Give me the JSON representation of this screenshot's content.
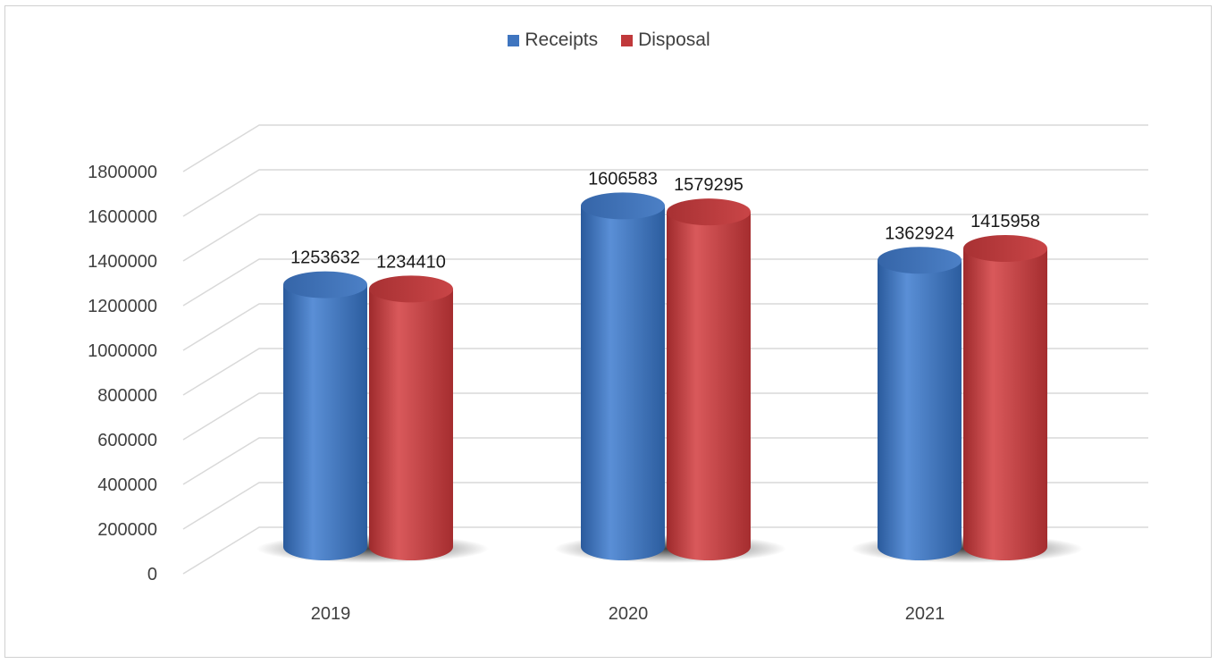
{
  "chart_data": {
    "type": "bar",
    "categories": [
      "2019",
      "2020",
      "2021"
    ],
    "series": [
      {
        "name": "Receipts",
        "values": [
          1253632,
          1606583,
          1362924
        ],
        "color": "#3f75bf"
      },
      {
        "name": "Disposal",
        "values": [
          1234410,
          1579295,
          1415958
        ],
        "color": "#c0393b"
      }
    ],
    "y_ticks": [
      "0",
      "200000",
      "400000",
      "600000",
      "800000",
      "1000000",
      "1200000",
      "1400000",
      "1600000",
      "1800000"
    ],
    "ylim": [
      0,
      1800000
    ],
    "grid": true,
    "legend_position": "top-center",
    "style": "3d-cylinder"
  }
}
